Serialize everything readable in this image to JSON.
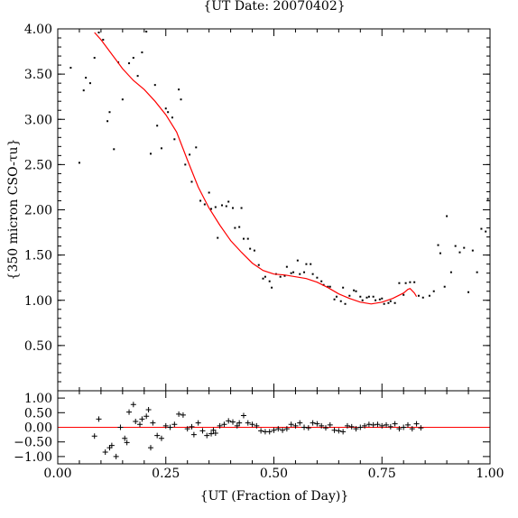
{
  "chart_data": [
    {
      "type": "scatter",
      "title": "{UT Date: 20070402}",
      "xlabel": "",
      "ylabel": "{350 micron CSO-τu}",
      "xlim": [
        0,
        1
      ],
      "ylim": [
        0,
        4
      ],
      "x_ticks": [
        "0.00",
        "0.25",
        "0.50",
        "0.75",
        "1.00"
      ],
      "y_ticks": [
        "0.50",
        "1.00",
        "1.50",
        "2.00",
        "2.50",
        "3.00",
        "3.50",
        "4.00"
      ],
      "points_color": "#000000",
      "fit_color": "#ff0000",
      "points": [
        [
          0.03,
          3.57
        ],
        [
          0.05,
          2.52
        ],
        [
          0.06,
          3.32
        ],
        [
          0.065,
          3.46
        ],
        [
          0.075,
          3.4
        ],
        [
          0.085,
          3.68
        ],
        [
          0.095,
          3.96
        ],
        [
          0.105,
          3.88
        ],
        [
          0.115,
          2.98
        ],
        [
          0.12,
          3.08
        ],
        [
          0.13,
          2.67
        ],
        [
          0.14,
          3.63
        ],
        [
          0.15,
          3.22
        ],
        [
          0.165,
          3.62
        ],
        [
          0.175,
          3.68
        ],
        [
          0.185,
          3.48
        ],
        [
          0.195,
          3.74
        ],
        [
          0.205,
          3.97
        ],
        [
          0.215,
          2.62
        ],
        [
          0.225,
          3.38
        ],
        [
          0.23,
          2.93
        ],
        [
          0.24,
          2.68
        ],
        [
          0.25,
          3.12
        ],
        [
          0.255,
          3.08
        ],
        [
          0.265,
          3.02
        ],
        [
          0.27,
          2.78
        ],
        [
          0.28,
          3.33
        ],
        [
          0.285,
          3.22
        ],
        [
          0.295,
          2.5
        ],
        [
          0.305,
          2.61
        ],
        [
          0.31,
          2.31
        ],
        [
          0.32,
          2.69
        ],
        [
          0.33,
          2.1
        ],
        [
          0.34,
          2.06
        ],
        [
          0.35,
          2.19
        ],
        [
          0.355,
          2.01
        ],
        [
          0.365,
          2.03
        ],
        [
          0.37,
          1.69
        ],
        [
          0.38,
          2.05
        ],
        [
          0.39,
          2.04
        ],
        [
          0.395,
          2.09
        ],
        [
          0.405,
          2.02
        ],
        [
          0.41,
          1.8
        ],
        [
          0.42,
          1.81
        ],
        [
          0.425,
          2.02
        ],
        [
          0.43,
          1.68
        ],
        [
          0.44,
          1.68
        ],
        [
          0.445,
          1.57
        ],
        [
          0.455,
          1.55
        ],
        [
          0.465,
          1.39
        ],
        [
          0.475,
          1.24
        ],
        [
          0.48,
          1.26
        ],
        [
          0.49,
          1.21
        ],
        [
          0.495,
          1.14
        ],
        [
          0.505,
          1.29
        ],
        [
          0.515,
          1.26
        ],
        [
          0.525,
          1.27
        ],
        [
          0.53,
          1.37
        ],
        [
          0.54,
          1.3
        ],
        [
          0.545,
          1.31
        ],
        [
          0.555,
          1.44
        ],
        [
          0.56,
          1.29
        ],
        [
          0.57,
          1.31
        ],
        [
          0.575,
          1.4
        ],
        [
          0.585,
          1.4
        ],
        [
          0.59,
          1.29
        ],
        [
          0.6,
          1.25
        ],
        [
          0.61,
          1.21
        ],
        [
          0.615,
          1.17
        ],
        [
          0.625,
          1.15
        ],
        [
          0.63,
          1.15
        ],
        [
          0.64,
          1.01
        ],
        [
          0.645,
          1.04
        ],
        [
          0.655,
          0.99
        ],
        [
          0.66,
          1.14
        ],
        [
          0.665,
          0.96
        ],
        [
          0.675,
          1.05
        ],
        [
          0.685,
          1.11
        ],
        [
          0.69,
          1.1
        ],
        [
          0.7,
          1.04
        ],
        [
          0.705,
          1.0
        ],
        [
          0.715,
          1.03
        ],
        [
          0.72,
          1.04
        ],
        [
          0.73,
          1.04
        ],
        [
          0.735,
          1.0
        ],
        [
          0.745,
          1.01
        ],
        [
          0.75,
          1.02
        ],
        [
          0.755,
          0.96
        ],
        [
          0.765,
          0.97
        ],
        [
          0.77,
          0.99
        ],
        [
          0.78,
          0.97
        ],
        [
          0.79,
          1.19
        ],
        [
          0.8,
          1.06
        ],
        [
          0.805,
          1.19
        ],
        [
          0.815,
          1.2
        ],
        [
          0.825,
          1.2
        ],
        [
          0.835,
          1.05
        ],
        [
          0.845,
          1.03
        ],
        [
          0.86,
          1.05
        ],
        [
          0.87,
          1.1
        ],
        [
          0.88,
          1.61
        ],
        [
          0.885,
          1.52
        ],
        [
          0.895,
          1.15
        ],
        [
          0.9,
          1.93
        ],
        [
          0.91,
          1.31
        ],
        [
          0.92,
          1.6
        ],
        [
          0.93,
          1.53
        ],
        [
          0.94,
          1.58
        ],
        [
          0.95,
          1.09
        ],
        [
          0.96,
          1.55
        ],
        [
          0.97,
          1.31
        ],
        [
          0.98,
          1.79
        ],
        [
          0.99,
          1.76
        ],
        [
          0.995,
          2.12
        ]
      ],
      "fit_curve": [
        [
          0.085,
          3.96
        ],
        [
          0.1,
          3.88
        ],
        [
          0.125,
          3.72
        ],
        [
          0.15,
          3.56
        ],
        [
          0.175,
          3.43
        ],
        [
          0.2,
          3.33
        ],
        [
          0.225,
          3.2
        ],
        [
          0.25,
          3.05
        ],
        [
          0.275,
          2.86
        ],
        [
          0.3,
          2.55
        ],
        [
          0.325,
          2.25
        ],
        [
          0.35,
          2.02
        ],
        [
          0.375,
          1.83
        ],
        [
          0.4,
          1.66
        ],
        [
          0.425,
          1.53
        ],
        [
          0.45,
          1.41
        ],
        [
          0.475,
          1.33
        ],
        [
          0.5,
          1.29
        ],
        [
          0.525,
          1.28
        ],
        [
          0.55,
          1.26
        ],
        [
          0.575,
          1.24
        ],
        [
          0.6,
          1.2
        ],
        [
          0.625,
          1.14
        ],
        [
          0.65,
          1.07
        ],
        [
          0.675,
          1.02
        ],
        [
          0.7,
          0.98
        ],
        [
          0.725,
          0.96
        ],
        [
          0.75,
          0.98
        ],
        [
          0.775,
          1.02
        ],
        [
          0.8,
          1.08
        ],
        [
          0.81,
          1.12
        ],
        [
          0.815,
          1.13
        ],
        [
          0.825,
          1.08
        ],
        [
          0.83,
          1.04
        ]
      ]
    },
    {
      "type": "scatter",
      "xlabel": "{UT (Fraction of Day)}",
      "ylabel": "",
      "xlim": [
        0,
        1
      ],
      "ylim": [
        -1.25,
        1.25
      ],
      "x_ticks": [
        "0.00",
        "0.25",
        "0.50",
        "0.75",
        "1.00"
      ],
      "y_ticks": [
        "1.00",
        "0.50",
        "0.00",
        "−0.50",
        "−1.00"
      ],
      "zero_line_color": "#ff0000",
      "residuals": [
        [
          0.085,
          -0.3
        ],
        [
          0.095,
          0.28
        ],
        [
          0.11,
          -0.85
        ],
        [
          0.12,
          -0.7
        ],
        [
          0.125,
          -0.62
        ],
        [
          0.135,
          -1.0
        ],
        [
          0.145,
          0.0
        ],
        [
          0.155,
          -0.38
        ],
        [
          0.16,
          -0.52
        ],
        [
          0.165,
          0.52
        ],
        [
          0.175,
          0.78
        ],
        [
          0.18,
          0.2
        ],
        [
          0.19,
          0.1
        ],
        [
          0.195,
          0.28
        ],
        [
          0.205,
          0.38
        ],
        [
          0.21,
          0.6
        ],
        [
          0.215,
          -0.7
        ],
        [
          0.22,
          0.15
        ],
        [
          0.23,
          -0.28
        ],
        [
          0.24,
          -0.38
        ],
        [
          0.25,
          0.05
        ],
        [
          0.26,
          0.0
        ],
        [
          0.27,
          0.1
        ],
        [
          0.28,
          0.45
        ],
        [
          0.29,
          0.42
        ],
        [
          0.3,
          -0.05
        ],
        [
          0.31,
          0.02
        ],
        [
          0.315,
          -0.25
        ],
        [
          0.325,
          0.15
        ],
        [
          0.335,
          -0.12
        ],
        [
          0.345,
          -0.28
        ],
        [
          0.355,
          -0.22
        ],
        [
          0.36,
          -0.1
        ],
        [
          0.365,
          -0.2
        ],
        [
          0.375,
          0.05
        ],
        [
          0.385,
          0.1
        ],
        [
          0.395,
          0.22
        ],
        [
          0.405,
          0.18
        ],
        [
          0.415,
          0.05
        ],
        [
          0.42,
          0.15
        ],
        [
          0.43,
          0.4
        ],
        [
          0.44,
          0.15
        ],
        [
          0.45,
          0.1
        ],
        [
          0.46,
          0.05
        ],
        [
          0.47,
          -0.12
        ],
        [
          0.48,
          -0.15
        ],
        [
          0.49,
          -0.15
        ],
        [
          0.5,
          -0.1
        ],
        [
          0.51,
          -0.05
        ],
        [
          0.52,
          -0.1
        ],
        [
          0.53,
          -0.05
        ],
        [
          0.54,
          0.1
        ],
        [
          0.55,
          0.05
        ],
        [
          0.56,
          0.15
        ],
        [
          0.57,
          0.0
        ],
        [
          0.58,
          -0.02
        ],
        [
          0.59,
          0.15
        ],
        [
          0.6,
          0.12
        ],
        [
          0.61,
          0.05
        ],
        [
          0.62,
          -0.02
        ],
        [
          0.63,
          0.08
        ],
        [
          0.64,
          -0.1
        ],
        [
          0.65,
          -0.12
        ],
        [
          0.66,
          -0.15
        ],
        [
          0.67,
          0.05
        ],
        [
          0.68,
          0.02
        ],
        [
          0.69,
          -0.05
        ],
        [
          0.7,
          0.0
        ],
        [
          0.71,
          0.05
        ],
        [
          0.72,
          0.1
        ],
        [
          0.73,
          0.08
        ],
        [
          0.74,
          0.1
        ],
        [
          0.75,
          0.05
        ],
        [
          0.76,
          0.08
        ],
        [
          0.77,
          0.02
        ],
        [
          0.78,
          0.12
        ],
        [
          0.79,
          -0.05
        ],
        [
          0.8,
          0.0
        ],
        [
          0.81,
          0.08
        ],
        [
          0.82,
          -0.05
        ],
        [
          0.83,
          0.12
        ],
        [
          0.84,
          -0.02
        ]
      ]
    }
  ]
}
